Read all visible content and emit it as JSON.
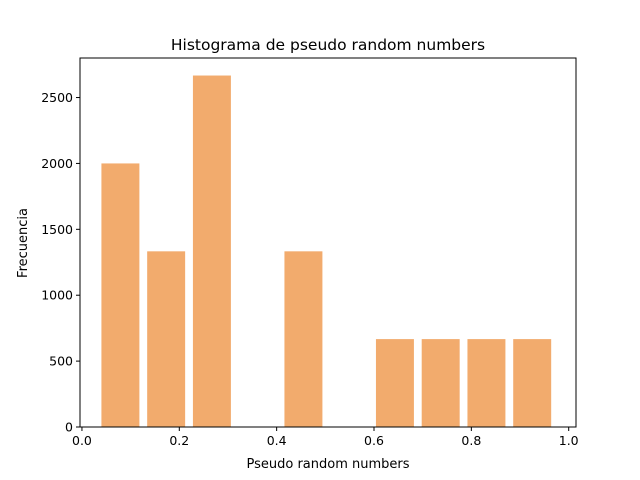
{
  "chart_data": {
    "type": "bar",
    "title": "Histograma de pseudo random numbers",
    "xlabel": "Pseudo random numbers",
    "ylabel": "Frecuencia",
    "xlim": [
      -0.004,
      1.015
    ],
    "ylim": [
      0,
      2800
    ],
    "xticks": [
      0.0,
      0.2,
      0.4,
      0.6,
      0.8,
      1.0
    ],
    "xtick_labels": [
      "0.0",
      "0.2",
      "0.4",
      "0.6",
      "0.8",
      "1.0"
    ],
    "yticks": [
      0,
      500,
      1000,
      1500,
      2000,
      2500
    ],
    "ytick_labels": [
      "0",
      "500",
      "1000",
      "1500",
      "2000",
      "2500"
    ],
    "bins": [
      {
        "x0": 0.04,
        "x1": 0.118,
        "value": 2000
      },
      {
        "x0": 0.134,
        "x1": 0.212,
        "value": 1333
      },
      {
        "x0": 0.228,
        "x1": 0.306,
        "value": 2667
      },
      {
        "x0": 0.322,
        "x1": 0.4,
        "value": 0
      },
      {
        "x0": 0.416,
        "x1": 0.494,
        "value": 1333
      },
      {
        "x0": 0.51,
        "x1": 0.588,
        "value": 0
      },
      {
        "x0": 0.604,
        "x1": 0.682,
        "value": 667
      },
      {
        "x0": 0.698,
        "x1": 0.776,
        "value": 667
      },
      {
        "x0": 0.792,
        "x1": 0.87,
        "value": 667
      },
      {
        "x0": 0.886,
        "x1": 0.964,
        "value": 667
      }
    ],
    "bar_color": "#f2ab6d",
    "grid": false,
    "legend": "none"
  }
}
